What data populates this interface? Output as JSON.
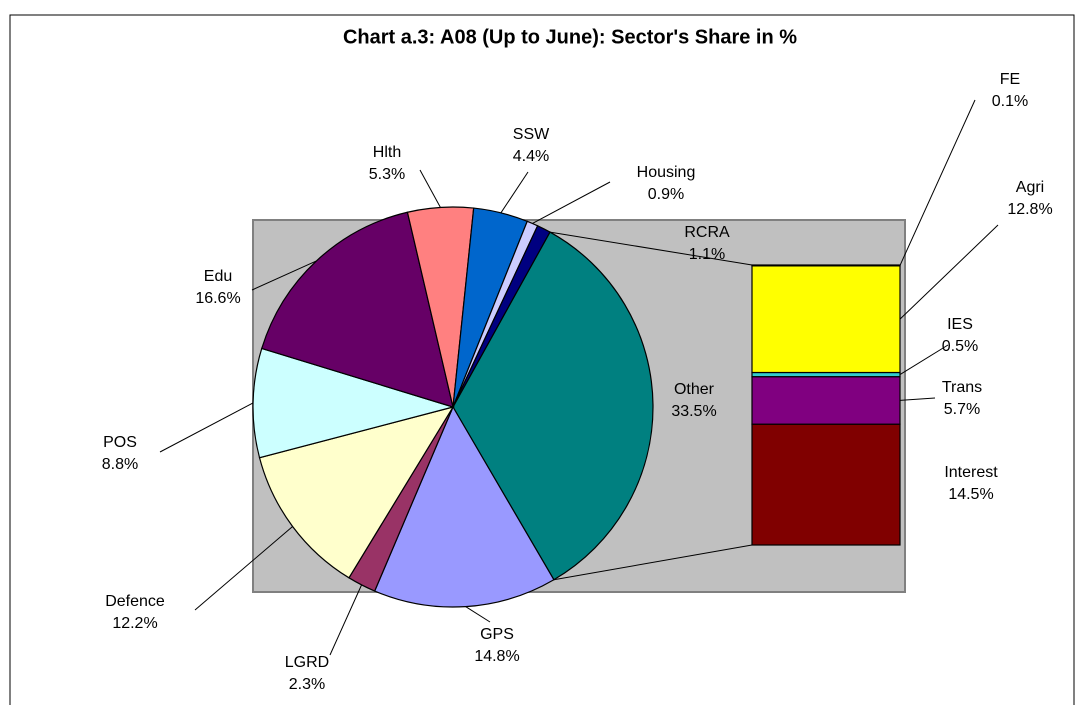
{
  "chart_data": {
    "type": "pie",
    "title": "Chart a.3: A08 (Up to June): Sector's Share in %",
    "pie": {
      "labels": [
        "Other",
        "GPS",
        "LGRD",
        "Defence",
        "POS",
        "Edu",
        "Hlth",
        "SSW",
        "Housing",
        "RCRA"
      ],
      "values": [
        33.5,
        14.8,
        2.3,
        12.2,
        8.8,
        16.6,
        5.3,
        4.4,
        0.9,
        1.1
      ],
      "value_labels": [
        "33.5%",
        "14.8%",
        "2.3%",
        "12.2%",
        "8.8%",
        "16.6%",
        "5.3%",
        "4.4%",
        "0.9%",
        "1.1%"
      ],
      "colors": [
        "#008080",
        "#9999ff",
        "#993366",
        "#ffffcc",
        "#ccffff",
        "#660066",
        "#ff8080",
        "#0066cc",
        "#ccccff",
        "#000080"
      ]
    },
    "bar": {
      "labels": [
        "Interest",
        "Trans",
        "IES",
        "Agri",
        "FE"
      ],
      "values": [
        14.5,
        5.7,
        0.5,
        12.8,
        0.1
      ],
      "value_labels": [
        "14.5%",
        "5.7%",
        "0.5%",
        "12.8%",
        "0.1%"
      ],
      "colors": [
        "#800000",
        "#800080",
        "#33cccc",
        "#ffff00",
        "#ffffcc"
      ]
    }
  }
}
